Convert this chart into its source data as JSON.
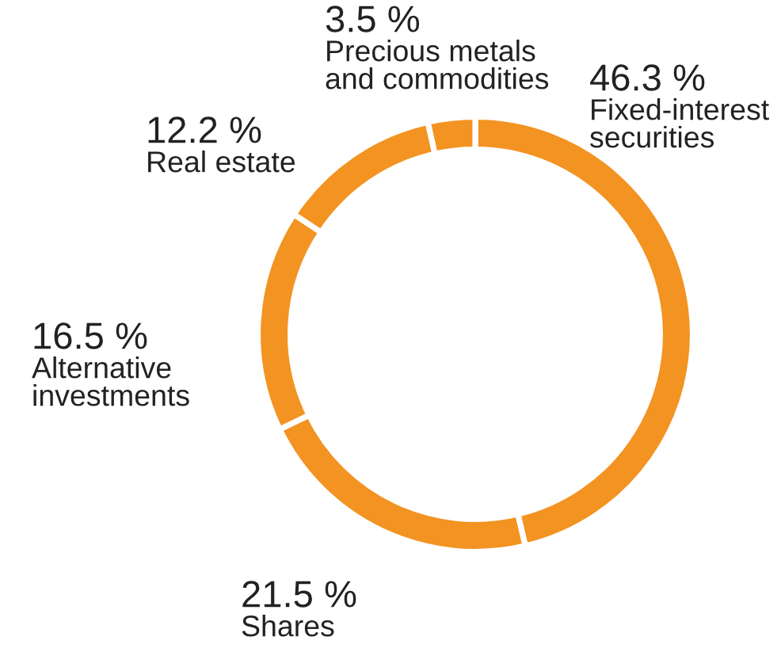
{
  "chart_data": {
    "type": "donut",
    "categories": [
      "Fixed-interest\nsecurities",
      "Shares",
      "Alternative\ninvestments",
      "Real estate",
      "Precious metals\nand commodities"
    ],
    "values": [
      46.3,
      21.5,
      16.5,
      12.2,
      3.5
    ],
    "value_labels": [
      "46.3 %",
      "21.5 %",
      "16.5 %",
      "12.2 %",
      "3.5 %"
    ],
    "colors": [
      "#f39322",
      "#f39322",
      "#f39322",
      "#f39322",
      "#f39322"
    ],
    "legend": false
  }
}
